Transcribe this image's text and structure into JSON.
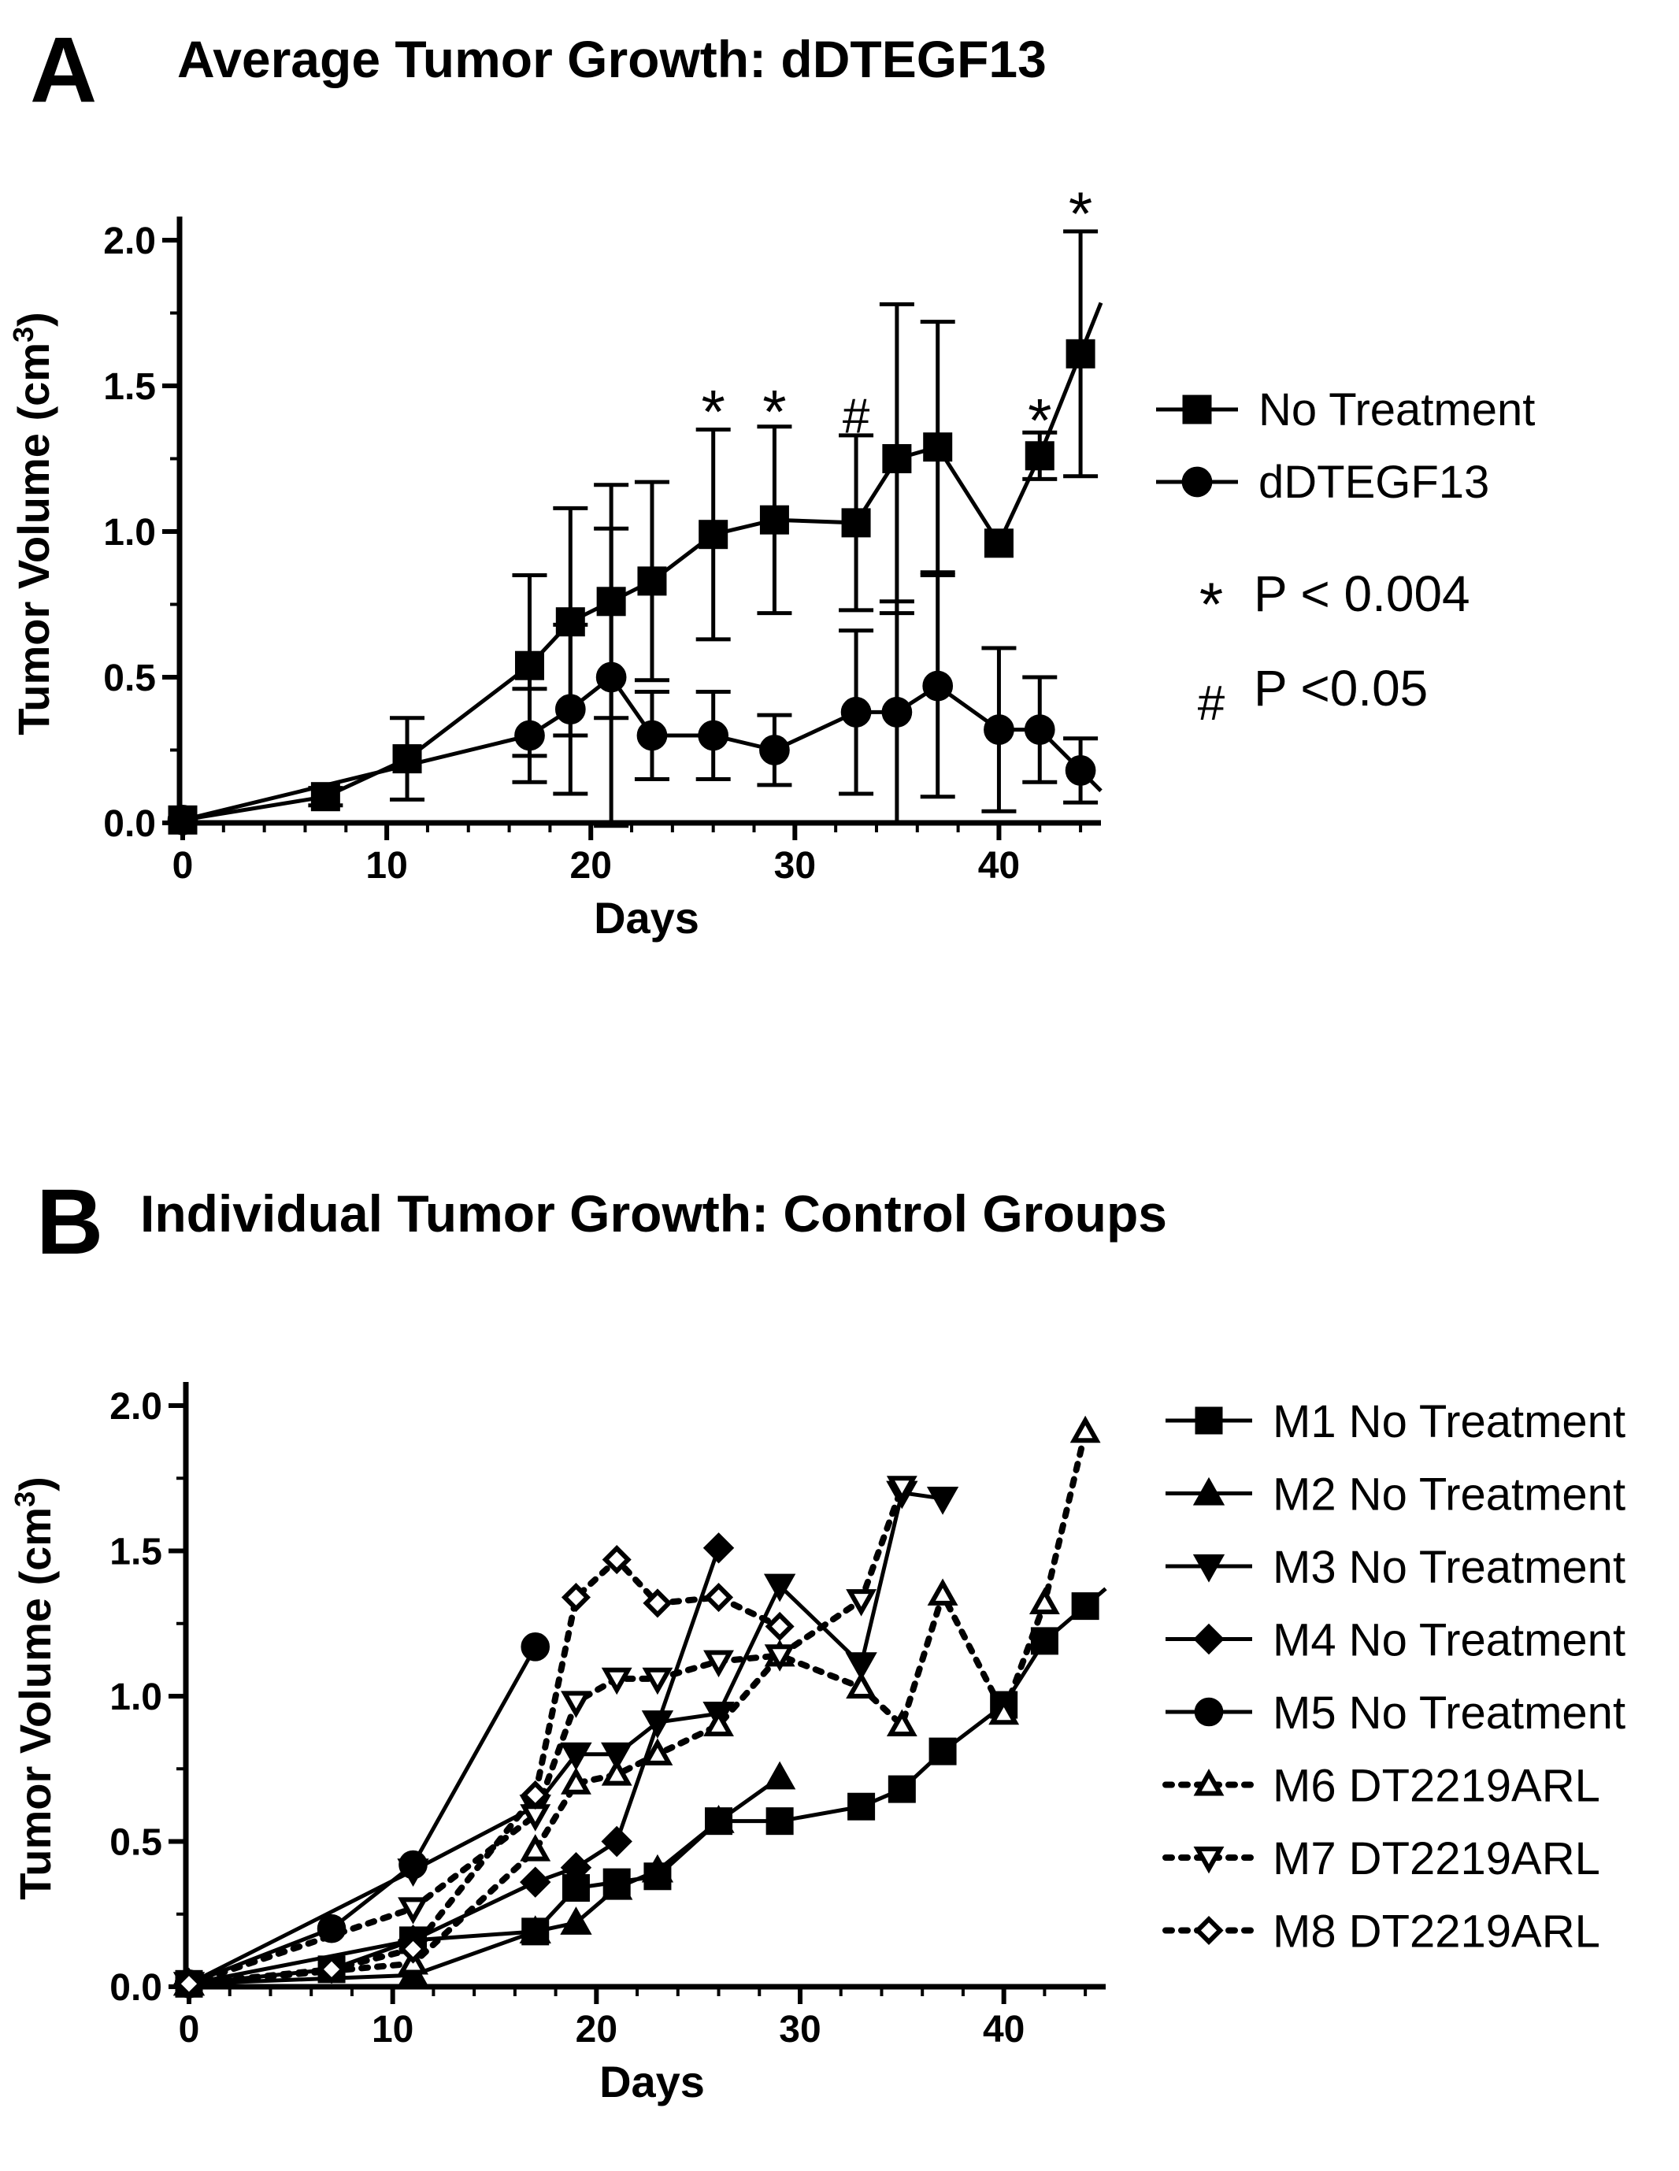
{
  "panels": {
    "a": {
      "letter": "A",
      "title": "Average Tumor Growth: dDTEGF13"
    },
    "b": {
      "letter": "B",
      "title": "Individual Tumor Growth: Control Groups"
    }
  },
  "chart_data": [
    {
      "type": "line",
      "title": "Average Tumor Growth: dDTEGF13",
      "xlabel": "Days",
      "ylabel_main": "Tumor Volume (cm",
      "ylabel_sup": "3",
      "ylabel_tail": ")",
      "xlim": [
        0,
        45
      ],
      "ylim": [
        0,
        2.0
      ],
      "xticks": [
        0,
        10,
        20,
        30,
        40
      ],
      "yticks": [
        0.0,
        0.5,
        1.0,
        1.5,
        2.0
      ],
      "ytick_labels": [
        "0.0",
        "0.5",
        "1.0",
        "1.5",
        "2.0"
      ],
      "grid": false,
      "legend_position": "right",
      "series": [
        {
          "name": "No Treatment",
          "marker": "square",
          "x": [
            0,
            7,
            11,
            17,
            19,
            21,
            23,
            26,
            29,
            33,
            35,
            37,
            40,
            42,
            44
          ],
          "y": [
            0.01,
            0.09,
            0.22,
            0.54,
            0.69,
            0.76,
            0.83,
            0.99,
            1.04,
            1.03,
            1.25,
            1.29,
            0.96,
            1.26,
            1.61
          ],
          "err": [
            0.01,
            0.03,
            0.14,
            0.31,
            0.39,
            0.4,
            0.34,
            0.36,
            0.32,
            0.3,
            0.53,
            0.43,
            0.0,
            0.08,
            0.42
          ]
        },
        {
          "name": "dDTEGF13",
          "marker": "circle",
          "x": [
            0,
            17,
            19,
            21,
            23,
            26,
            29,
            33,
            35,
            37,
            40,
            42,
            44
          ],
          "y": [
            0.01,
            0.3,
            0.39,
            0.5,
            0.3,
            0.3,
            0.25,
            0.38,
            0.38,
            0.47,
            0.32,
            0.32,
            0.18
          ],
          "err": [
            0.01,
            0.16,
            0.29,
            0.51,
            0.15,
            0.15,
            0.12,
            0.28,
            0.38,
            0.38,
            0.28,
            0.18,
            0.11
          ]
        }
      ],
      "annotations": [
        {
          "text": "*",
          "x": 26,
          "y": 1.42
        },
        {
          "text": "*",
          "x": 29,
          "y": 1.42
        },
        {
          "text": "#",
          "x": 33,
          "y": 1.42
        },
        {
          "text": "*",
          "x": 42,
          "y": 1.39
        },
        {
          "text": "*",
          "x": 44,
          "y": 2.1
        }
      ],
      "significance": [
        {
          "symbol": "*",
          "label": "P < 0.004"
        },
        {
          "symbol": "#",
          "label": "P <0.05"
        }
      ]
    },
    {
      "type": "line",
      "title": "Individual Tumor Growth: Control Groups",
      "xlabel": "Days",
      "ylabel_main": "Tumor Volume (cm",
      "ylabel_sup": "3",
      "ylabel_tail": ")",
      "xlim": [
        0,
        45
      ],
      "ylim": [
        0,
        2.0
      ],
      "xticks": [
        0,
        10,
        20,
        30,
        40
      ],
      "yticks": [
        0.0,
        0.5,
        1.0,
        1.5,
        2.0
      ],
      "ytick_labels": [
        "0.0",
        "0.5",
        "1.0",
        "1.5",
        "2.0"
      ],
      "grid": false,
      "legend_position": "right",
      "series": [
        {
          "name": "M1 No Treatment",
          "marker": "square",
          "filled": true,
          "dashed": false,
          "x": [
            0,
            7,
            11,
            17,
            19,
            21,
            23,
            26,
            29,
            33,
            35,
            37,
            40,
            42,
            44
          ],
          "y": [
            0.01,
            0.06,
            0.16,
            0.19,
            0.34,
            0.36,
            0.38,
            0.57,
            0.57,
            0.62,
            0.68,
            0.81,
            0.97,
            1.19,
            1.31
          ]
        },
        {
          "name": "M2 No Treatment",
          "marker": "triangle-up",
          "filled": true,
          "dashed": false,
          "x": [
            0,
            11,
            17,
            19,
            21,
            23,
            26,
            29
          ],
          "y": [
            0.01,
            0.04,
            0.19,
            0.22,
            0.34,
            0.4,
            0.57,
            0.72
          ]
        },
        {
          "name": "M3 No Treatment",
          "marker": "triangle-down",
          "filled": true,
          "dashed": false,
          "x": [
            0,
            11,
            17,
            19,
            21,
            23,
            26,
            29,
            33,
            35,
            37
          ],
          "y": [
            0.01,
            0.4,
            0.62,
            0.8,
            0.8,
            0.91,
            0.94,
            1.38,
            1.11,
            1.7,
            1.68
          ]
        },
        {
          "name": "M4 No Treatment",
          "marker": "diamond",
          "filled": true,
          "dashed": false,
          "x": [
            0,
            11,
            17,
            19,
            21,
            26
          ],
          "y": [
            0.01,
            0.16,
            0.36,
            0.41,
            0.5,
            1.51
          ]
        },
        {
          "name": "M5 No Treatment",
          "marker": "circle",
          "filled": true,
          "dashed": false,
          "x": [
            0,
            7,
            11,
            17
          ],
          "y": [
            0.01,
            0.2,
            0.42,
            1.17
          ]
        },
        {
          "name": "M6 DT2219ARL",
          "marker": "triangle-up",
          "filled": false,
          "dashed": true,
          "x": [
            0,
            11,
            17,
            19,
            21,
            23,
            26,
            29,
            33,
            35,
            37,
            40,
            42,
            44
          ],
          "y": [
            0.01,
            0.08,
            0.47,
            0.7,
            0.73,
            0.8,
            0.9,
            1.14,
            1.03,
            0.9,
            1.35,
            0.94,
            1.32,
            1.91
          ]
        },
        {
          "name": "M7 DT2219ARL",
          "marker": "triangle-down",
          "filled": false,
          "dashed": true,
          "x": [
            0,
            11,
            17,
            19,
            21,
            23,
            26,
            29,
            33,
            35
          ],
          "y": [
            0.01,
            0.27,
            0.59,
            0.98,
            1.06,
            1.06,
            1.12,
            1.14,
            1.33,
            1.72
          ]
        },
        {
          "name": "M8 DT2219ARL",
          "marker": "diamond",
          "filled": false,
          "dashed": true,
          "x": [
            0,
            7,
            11,
            17,
            19,
            21,
            23,
            26,
            29
          ],
          "y": [
            0.01,
            0.06,
            0.13,
            0.66,
            1.34,
            1.47,
            1.32,
            1.34,
            1.24
          ]
        }
      ]
    }
  ]
}
